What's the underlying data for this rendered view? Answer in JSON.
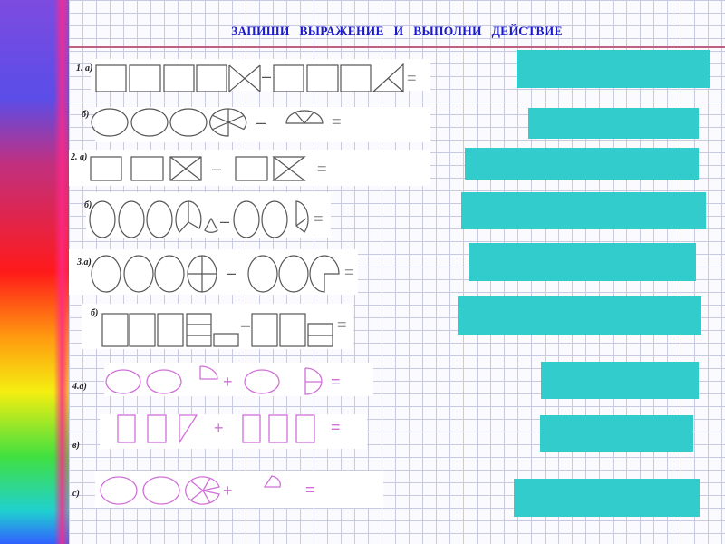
{
  "title": "ЗАПИШИ ВЫРАЖЕНИЕ И ВЫПОЛНИ ДЕЙСТВИЕ",
  "colors": {
    "answer_box": "#33cccc",
    "title": "#1a1acc",
    "pink_shapes": "#d070d8",
    "gray_shapes": "#555555"
  },
  "labels": [
    "1. а)",
    "б)",
    "2. а)",
    "б)",
    "3.а)",
    "б)",
    "4.а)",
    "в)",
    "с)"
  ],
  "operators": {
    "minus": "–",
    "plus": "+",
    "equals": "="
  }
}
